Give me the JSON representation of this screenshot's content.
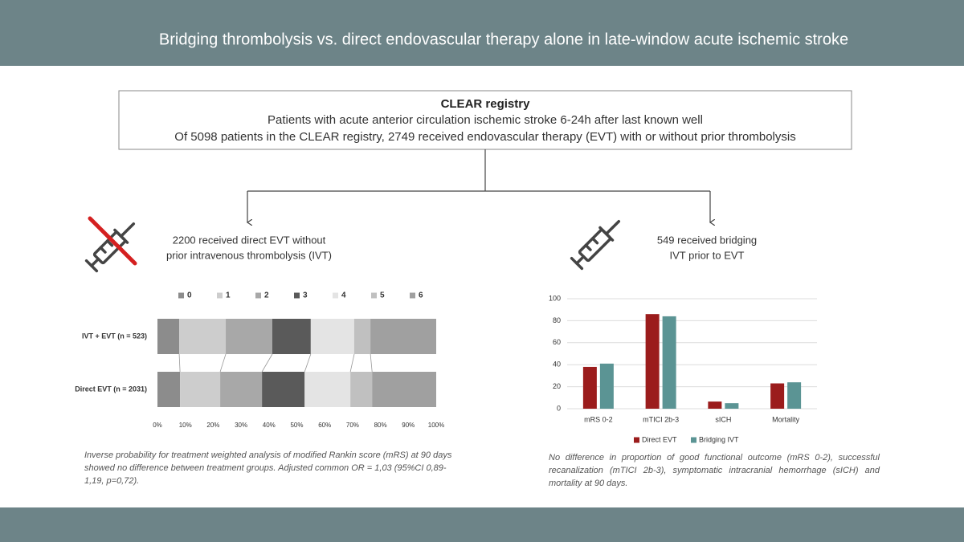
{
  "header": {
    "title": "Bridging thrombolysis vs. direct endovascular therapy alone in late-window acute ischemic stroke"
  },
  "registry": {
    "title": "CLEAR registry",
    "lines": [
      "Patients with acute anterior circulation ischemic stroke 6-24h after last known well",
      "Of 5098 patients in the CLEAR registry, 2749 received endovascular therapy (EVT) with or without prior thrombolysis"
    ]
  },
  "arms": [
    {
      "lines": [
        "2200 received direct EVT without",
        "prior intravenous thrombolysis (IVT)"
      ]
    },
    {
      "lines": [
        "549 received bridging",
        "IVT prior to EVT"
      ]
    }
  ],
  "chart_data": [
    {
      "type": "bar",
      "orientation": "horizontal",
      "stacked": true,
      "legend": "top",
      "categories": [
        "IVT + EVT (n = 523)",
        "Direct EVT (n = 2031)"
      ],
      "series": [
        {
          "name": "0",
          "color": "#8c8c8c",
          "values": [
            7.8,
            8.1
          ]
        },
        {
          "name": "1",
          "color": "#cdcdcd",
          "values": [
            16.7,
            14.4
          ]
        },
        {
          "name": "2",
          "color": "#a8a8a8",
          "values": [
            16.7,
            15.0
          ]
        },
        {
          "name": "3",
          "color": "#5a5a5a",
          "values": [
            13.8,
            15.3
          ]
        },
        {
          "name": "4",
          "color": "#e4e4e4",
          "values": [
            15.6,
            16.4
          ]
        },
        {
          "name": "5",
          "color": "#c0c0c0",
          "values": [
            5.8,
            7.8
          ]
        },
        {
          "name": "6",
          "color": "#a0a0a0",
          "values": [
            23.6,
            23.0
          ]
        }
      ],
      "xlim": [
        0,
        100
      ],
      "xticks": [
        {
          "value": 0,
          "label": "0%"
        },
        {
          "value": 10,
          "label": "10%"
        },
        {
          "value": 20,
          "label": "20%"
        },
        {
          "value": 30,
          "label": "30%"
        },
        {
          "value": 40,
          "label": "40%"
        },
        {
          "value": 50,
          "label": "50%"
        },
        {
          "value": 60,
          "label": "60%"
        },
        {
          "value": 70,
          "label": "70%"
        },
        {
          "value": 80,
          "label": "80%"
        },
        {
          "value": 90,
          "label": "90%"
        },
        {
          "value": 100,
          "label": "100%"
        }
      ]
    },
    {
      "type": "bar",
      "orientation": "vertical",
      "legend": "bottom",
      "grid": true,
      "categories": [
        "mRS 0-2",
        "mTICI 2b-3",
        "sICH",
        "Mortality"
      ],
      "series": [
        {
          "name": "Direct EVT",
          "color": "#9b1c1c",
          "values": [
            38,
            86,
            6.5,
            23
          ]
        },
        {
          "name": "Bridging IVT",
          "color": "#5b9494",
          "values": [
            41,
            84,
            5,
            24
          ]
        }
      ],
      "ylim": [
        0,
        100
      ],
      "yticks": [
        0,
        20,
        40,
        60,
        80,
        100
      ]
    }
  ],
  "notes": [
    "Inverse probability for treatment weighted analysis of modified Rankin score (mRS) at 90 days showed no difference between treatment groups. Adjusted common OR = 1,03 (95%CI 0,89-1,19, p=0,72).",
    "No difference in proportion of good functional outcome (mRS 0-2), successful recanalization (mTICI 2b-3), symptomatic intracranial hemorrhage (sICH) and mortality at 90 days."
  ]
}
